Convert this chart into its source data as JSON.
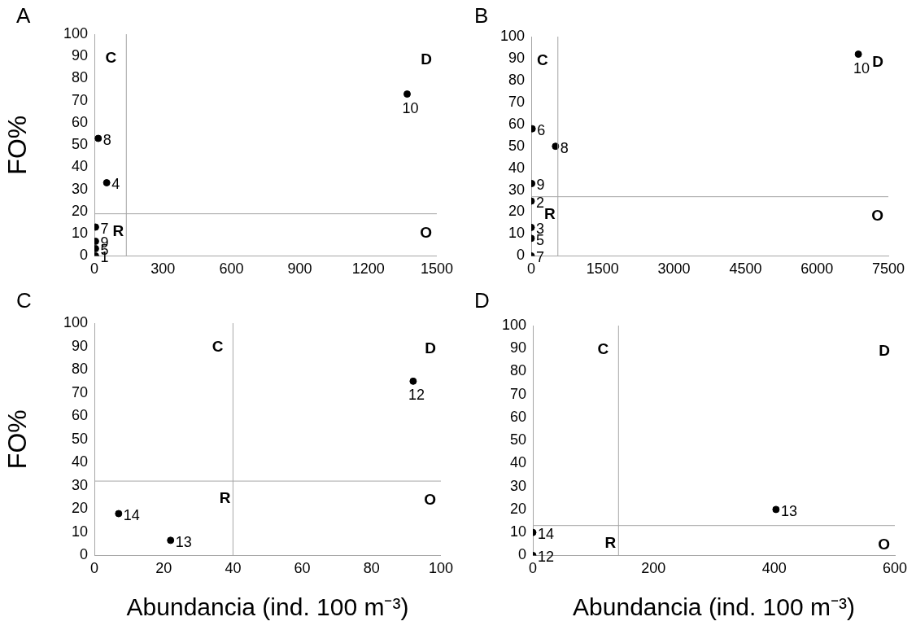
{
  "chart_data": [
    {
      "type": "scatter",
      "title": "A",
      "ylabel": "FO%",
      "color": "#000000",
      "marker": "circle",
      "x": [
        1370,
        17,
        54,
        5,
        5,
        5,
        5
      ],
      "values": [
        73,
        53,
        33,
        13,
        6.6,
        3.3,
        0
      ],
      "xlim": [
        0,
        1500
      ],
      "xticks": [
        0,
        300,
        600,
        900,
        1200,
        1500
      ],
      "ylim": [
        0,
        100
      ],
      "yticks": [
        0,
        10,
        20,
        30,
        40,
        50,
        60,
        70,
        80,
        90,
        100
      ],
      "ref_lines": [
        {
          "axis": "x",
          "value": 140,
          "color": "#a6a6a6"
        },
        {
          "axis": "y",
          "value": 19,
          "color": "#a6a6a6"
        }
      ],
      "annotations": [
        "C",
        "D",
        "R",
        "O",
        {
          "text": "10",
          "x": 1370,
          "y": 73
        },
        {
          "text": "8",
          "x": 17,
          "y": 53
        },
        {
          "text": "4",
          "x": 54,
          "y": 33
        },
        {
          "text": "7",
          "x": 5,
          "y": 13
        },
        {
          "text": "9",
          "x": 5,
          "y": 6.6
        },
        {
          "text": "5",
          "x": 5,
          "y": 3.3
        },
        {
          "text": "1",
          "x": 5,
          "y": 0
        }
      ]
    },
    {
      "type": "scatter",
      "title": "B",
      "color": "#000000",
      "marker": "circle",
      "x": [
        6870,
        20,
        510,
        10,
        0,
        0,
        0,
        0
      ],
      "values": [
        92,
        58,
        50,
        33,
        25,
        13,
        8,
        0
      ],
      "xlim": [
        0,
        7500
      ],
      "xticks": [
        0,
        1500,
        3000,
        4500,
        6000,
        7500
      ],
      "ylim": [
        0,
        100
      ],
      "yticks": [
        0,
        10,
        20,
        30,
        40,
        50,
        60,
        70,
        80,
        90,
        100
      ],
      "ref_lines": [
        {
          "axis": "x",
          "value": 560,
          "color": "#a6a6a6"
        },
        {
          "axis": "y",
          "value": 27,
          "color": "#a6a6a6"
        }
      ],
      "annotations": [
        "C",
        "D",
        "R",
        "O",
        {
          "text": "10",
          "x": 6870,
          "y": 92
        },
        {
          "text": "6",
          "x": 20,
          "y": 58
        },
        {
          "text": "8",
          "x": 510,
          "y": 50
        },
        {
          "text": "9",
          "x": 10,
          "y": 33
        },
        {
          "text": "2",
          "x": 0,
          "y": 25
        },
        {
          "text": "3",
          "x": 0,
          "y": 13
        },
        {
          "text": "5",
          "x": 0,
          "y": 8
        },
        {
          "text": "7",
          "x": 0,
          "y": 0
        }
      ]
    },
    {
      "type": "scatter",
      "title": "C",
      "ylabel": "FO%",
      "xlabel": "Abundancia (ind. 100 m⁻³)",
      "color": "#000000",
      "marker": "circle",
      "x": [
        92,
        7,
        22
      ],
      "values": [
        75,
        18,
        6.5
      ],
      "xlim": [
        0,
        100
      ],
      "xticks": [
        0,
        20,
        40,
        60,
        80,
        100
      ],
      "ylim": [
        0,
        100
      ],
      "yticks": [
        0,
        10,
        20,
        30,
        40,
        50,
        60,
        70,
        80,
        90,
        100
      ],
      "ref_lines": [
        {
          "axis": "x",
          "value": 40,
          "color": "#a6a6a6"
        },
        {
          "axis": "y",
          "value": 32,
          "color": "#a6a6a6"
        }
      ],
      "annotations": [
        "C",
        "D",
        "R",
        "O",
        {
          "text": "12",
          "x": 92,
          "y": 75
        },
        {
          "text": "14",
          "x": 7,
          "y": 18
        },
        {
          "text": "13",
          "x": 22,
          "y": 6.5
        }
      ]
    },
    {
      "type": "scatter",
      "title": "D",
      "xlabel": "Abundancia (ind. 100 m⁻³)",
      "color": "#000000",
      "marker": "circle",
      "x": [
        403,
        0,
        0
      ],
      "values": [
        20,
        10,
        0
      ],
      "xlim": [
        0,
        600
      ],
      "xticks": [
        0,
        200,
        400,
        600
      ],
      "ylim": [
        0,
        100
      ],
      "yticks": [
        0,
        10,
        20,
        30,
        40,
        50,
        60,
        70,
        80,
        90,
        100
      ],
      "ref_lines": [
        {
          "axis": "x",
          "value": 142,
          "color": "#a6a6a6"
        },
        {
          "axis": "y",
          "value": 13,
          "color": "#a6a6a6"
        }
      ],
      "annotations": [
        "C",
        "D",
        "R",
        "O",
        {
          "text": "13",
          "x": 403,
          "y": 20
        },
        {
          "text": "14",
          "x": 0,
          "y": 10
        },
        {
          "text": "12",
          "x": 0,
          "y": 0
        }
      ]
    }
  ]
}
